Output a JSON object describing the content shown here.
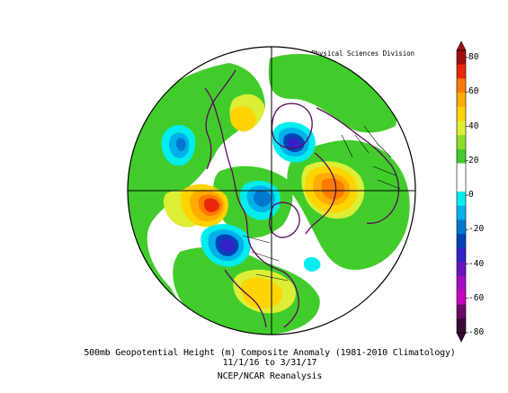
{
  "header": {
    "credit": "NOAA/ESRL Physical Sciences Division"
  },
  "caption": {
    "title": "500mb Geopotential Height (m) Composite Anomaly (1981-2010 Climatology)",
    "period": "11/1/16  to 3/31/17",
    "source": "NCEP/NCAR Reanalysis"
  },
  "colorbar": {
    "labels": [
      "80",
      "60",
      "40",
      "20",
      "0",
      "-20",
      "-40",
      "-60",
      "-80"
    ],
    "bands": [
      {
        "color": "#a01010"
      },
      {
        "color": "#e8280c"
      },
      {
        "color": "#ff7a00"
      },
      {
        "color": "#ffac00"
      },
      {
        "color": "#ffd400"
      },
      {
        "color": "#dcee36"
      },
      {
        "color": "#8edb2c"
      },
      {
        "color": "#42cc2c"
      },
      {
        "color": "#ffffff"
      },
      {
        "color": "#ffffff"
      },
      {
        "color": "#00eeee"
      },
      {
        "color": "#00b0ea"
      },
      {
        "color": "#0078d0"
      },
      {
        "color": "#0044b8"
      },
      {
        "color": "#3422c8"
      },
      {
        "color": "#6a16c0"
      },
      {
        "color": "#a20ec0"
      },
      {
        "color": "#c800c0"
      },
      {
        "color": "#6a0a6a"
      },
      {
        "color": "#3a0838"
      }
    ]
  },
  "map_data": {
    "projection": "north polar stereographic",
    "variable": "500mb geopotential height anomaly",
    "units": "m",
    "features": [
      {
        "kind": "negative",
        "region": "Pacific west of North America",
        "peak": -30
      },
      {
        "kind": "negative",
        "region": "Greenland / Arctic",
        "peak": -50
      },
      {
        "kind": "negative",
        "region": "Scandinavia / Barents",
        "peak": -25
      },
      {
        "kind": "negative",
        "region": "North Pacific near Aleutians",
        "peak": -40
      },
      {
        "kind": "positive",
        "region": "Eastern Siberia / Bering",
        "peak": 60
      },
      {
        "kind": "positive",
        "region": "North Atlantic / Eurasia",
        "peak": 50
      },
      {
        "kind": "positive",
        "region": "Southeastern North America",
        "peak": 30
      }
    ]
  }
}
